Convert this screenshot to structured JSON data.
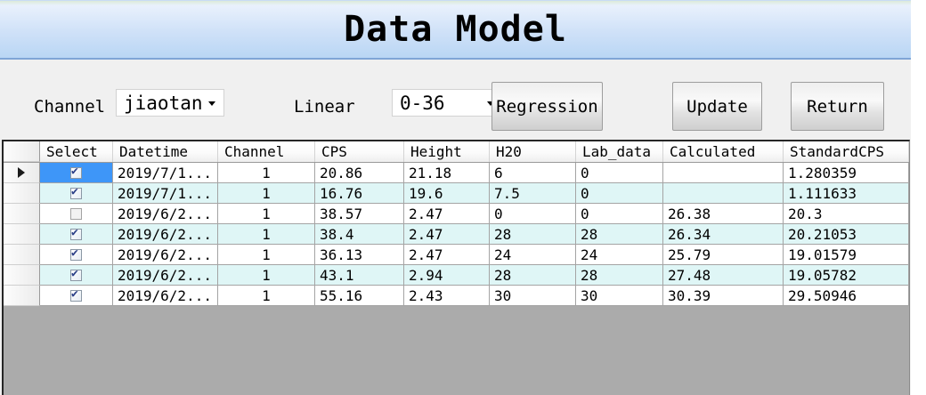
{
  "title": "Data Model",
  "toolbar": {
    "channel_label": "Channel",
    "channel_value": "jiaotan",
    "linear_label": "Linear",
    "linear_value": "0-36",
    "regression_label": "Regression",
    "update_label": "Update",
    "return_label": "Return"
  },
  "grid": {
    "columns": [
      "Select",
      "Datetime",
      "Channel",
      "CPS",
      "Height",
      "H20",
      "Lab_data",
      "Calculated",
      "StandardCPS"
    ],
    "rows": [
      {
        "checked": true,
        "current": true,
        "cell_selected": true,
        "datetime": "2019/7/1...",
        "channel": "1",
        "cps": "20.86",
        "height": "21.18",
        "h2o": "6",
        "lab_data": "0",
        "calculated": "",
        "standard_cps": "1.280359"
      },
      {
        "checked": true,
        "datetime": "2019/7/1...",
        "channel": "1",
        "cps": "16.76",
        "height": "19.6",
        "h2o": "7.5",
        "lab_data": "0",
        "calculated": "",
        "standard_cps": "1.111633"
      },
      {
        "checked": false,
        "datetime": "2019/6/2...",
        "channel": "1",
        "cps": "38.57",
        "height": "2.47",
        "h2o": "0",
        "lab_data": "0",
        "calculated": "26.38",
        "standard_cps": "20.3"
      },
      {
        "checked": true,
        "datetime": "2019/6/2...",
        "channel": "1",
        "cps": "38.4",
        "height": "2.47",
        "h2o": "28",
        "lab_data": "28",
        "calculated": "26.34",
        "standard_cps": "20.21053"
      },
      {
        "checked": true,
        "datetime": "2019/6/2...",
        "channel": "1",
        "cps": "36.13",
        "height": "2.47",
        "h2o": "24",
        "lab_data": "24",
        "calculated": "25.79",
        "standard_cps": "19.01579"
      },
      {
        "checked": true,
        "datetime": "2019/6/2...",
        "channel": "1",
        "cps": "43.1",
        "height": "2.94",
        "h2o": "28",
        "lab_data": "28",
        "calculated": "27.48",
        "standard_cps": "19.05782"
      },
      {
        "checked": true,
        "datetime": "2019/6/2...",
        "channel": "1",
        "cps": "55.16",
        "height": "2.43",
        "h2o": "30",
        "lab_data": "30",
        "calculated": "30.39",
        "standard_cps": "29.50946"
      }
    ]
  },
  "colors": {
    "title_gradient_top": "#e9f1fc",
    "title_gradient_bottom": "#b9d6f4",
    "form_background": "#f0f0f0",
    "selection_blue": "#3e96f8",
    "alt_row_cyan": "#dff6f6",
    "grid_empty_gray": "#ababab",
    "check_navy": "#2b3f87"
  }
}
